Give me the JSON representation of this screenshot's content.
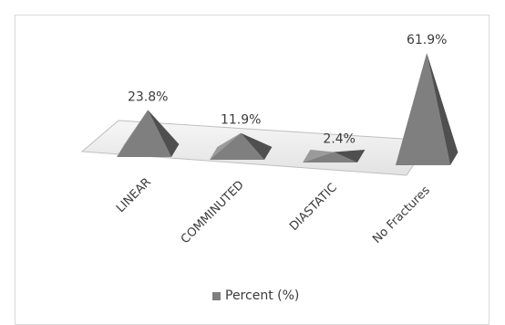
{
  "chart_data": {
    "type": "bar",
    "style": "3d-pyramid",
    "categories": [
      "LINEAR",
      "COMMINUTED",
      "DIASTATIC",
      "No Fractures"
    ],
    "series": [
      {
        "name": "Percent (%)",
        "values": [
          23.8,
          11.9,
          2.4,
          61.9
        ],
        "data_labels": [
          "23.8%",
          "11.9%",
          "2.4%",
          "61.9%"
        ],
        "color": "#7f7f7f"
      }
    ],
    "legend_placement": "bottom",
    "grid": false,
    "ylim": [
      0,
      61.9
    ]
  }
}
